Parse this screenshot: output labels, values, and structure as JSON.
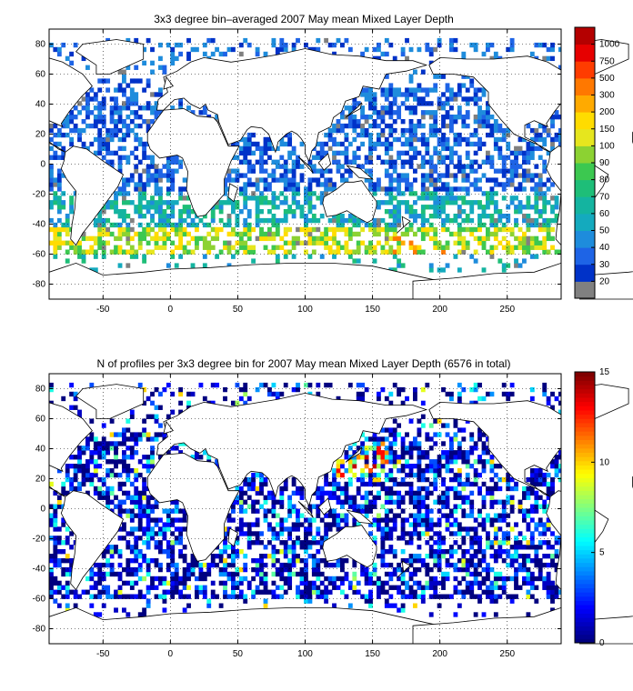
{
  "maps": [
    {
      "title": "3x3 degree bin–averaged 2007 May mean Mixed Layer Depth",
      "x_ticks": [
        "-50",
        "0",
        "50",
        "100",
        "150",
        "200",
        "250"
      ],
      "y_ticks": [
        "80",
        "60",
        "40",
        "20",
        "0",
        "-20",
        "-40",
        "-60",
        "-80"
      ],
      "colorbar": {
        "labels": [
          "20",
          "30",
          "40",
          "50",
          "60",
          "70",
          "80",
          "90",
          "100",
          "150",
          "200",
          "300",
          "500",
          "750",
          "1000"
        ],
        "colors": [
          "#808080",
          "#0032c8",
          "#1e64e6",
          "#1e8cdc",
          "#14aabe",
          "#14b4a0",
          "#1ebe78",
          "#3cc850",
          "#8cd232",
          "#e6e61e",
          "#ffdc00",
          "#ffaa00",
          "#ff7800",
          "#ff3c00",
          "#e60000",
          "#b40000"
        ]
      }
    },
    {
      "title": "N of profiles per 3x3 degree bin for 2007 May mean Mixed Layer Depth  (6576 in total)",
      "x_ticks": [
        "-50",
        "0",
        "50",
        "100",
        "150",
        "200",
        "250"
      ],
      "y_ticks": [
        "80",
        "60",
        "40",
        "20",
        "0",
        "-20",
        "-40",
        "-60",
        "-80"
      ],
      "colorbar": {
        "labels": [
          "0",
          "5",
          "10",
          "15"
        ]
      }
    }
  ]
}
